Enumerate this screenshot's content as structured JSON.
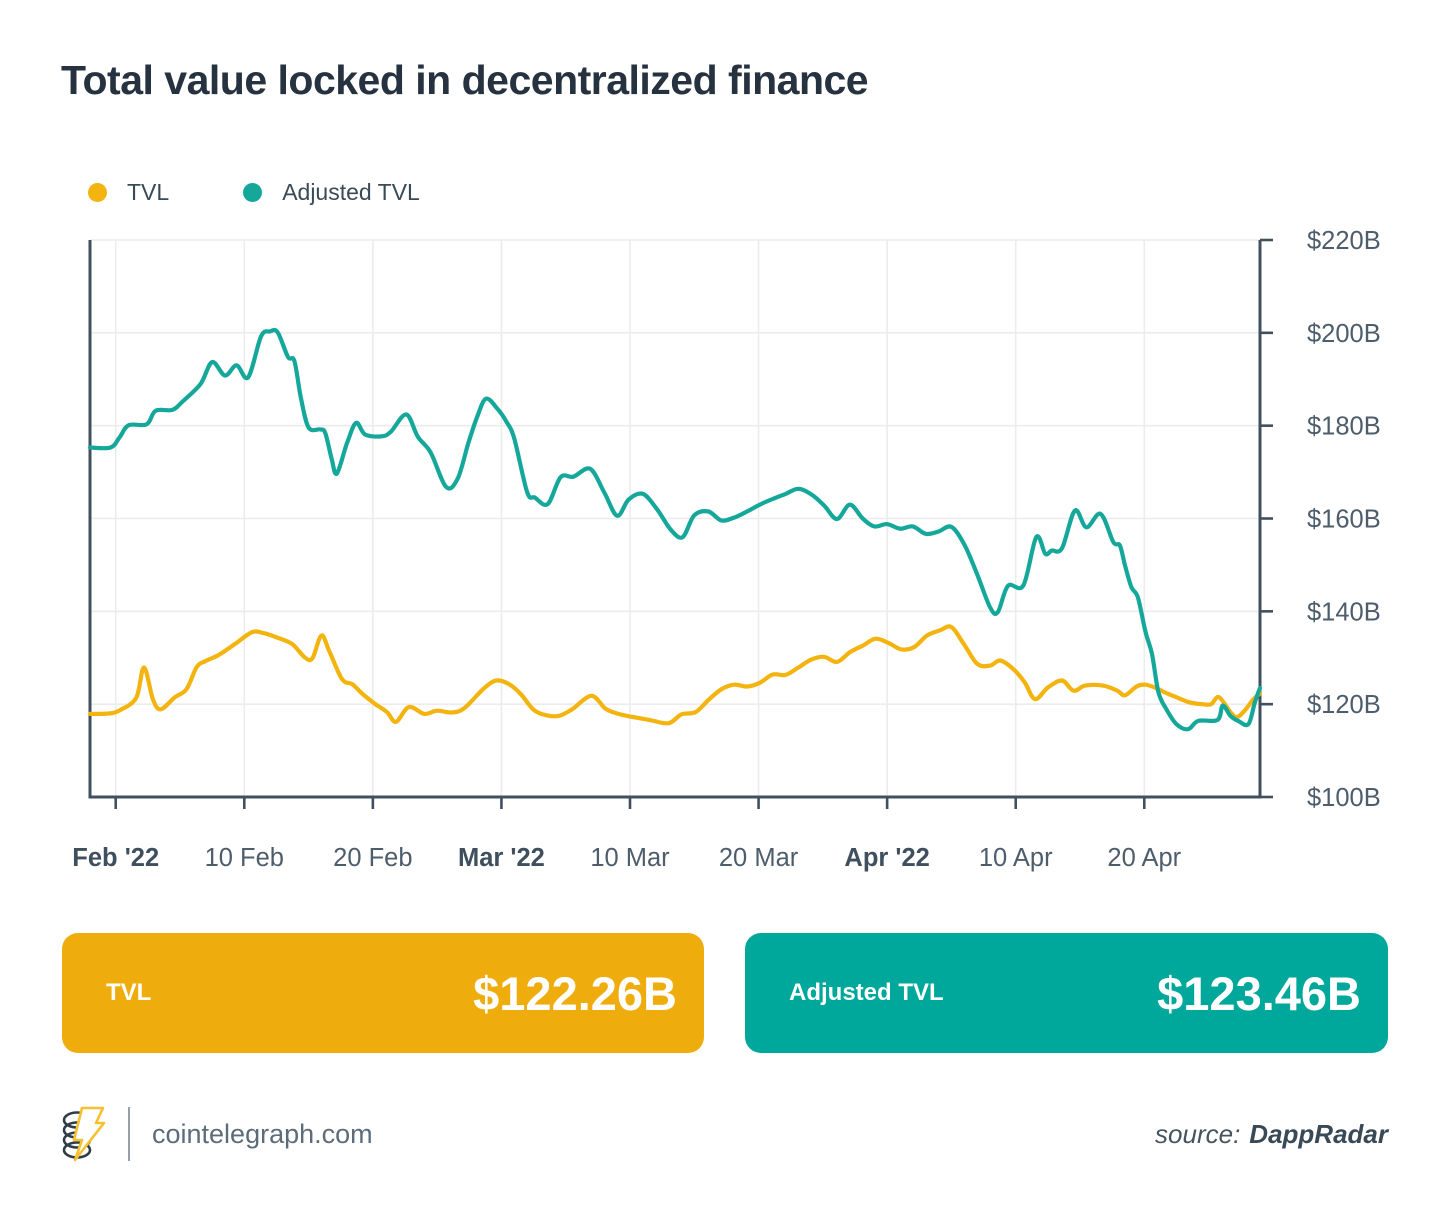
{
  "title": "Total value locked in decentralized finance",
  "legend": [
    {
      "label": "TVL",
      "color": "#F3B40F"
    },
    {
      "label": "Adjusted TVL",
      "color": "#16A79B"
    }
  ],
  "chart_data": {
    "type": "line",
    "title": "Total value locked in decentralized finance",
    "xlabel": "",
    "ylabel": "",
    "grid": true,
    "legend_position": "top-left",
    "x_axis": {
      "day_span": 91,
      "ticks": [
        {
          "day": 2,
          "label": "Feb '22",
          "bold": true
        },
        {
          "day": 12,
          "label": "10 Feb",
          "bold": false
        },
        {
          "day": 22,
          "label": "20 Feb",
          "bold": false
        },
        {
          "day": 32,
          "label": "Mar '22",
          "bold": true
        },
        {
          "day": 42,
          "label": "10 Mar",
          "bold": false
        },
        {
          "day": 52,
          "label": "20 Mar",
          "bold": false
        },
        {
          "day": 62,
          "label": "Apr '22",
          "bold": true
        },
        {
          "day": 72,
          "label": "10 Apr",
          "bold": false
        },
        {
          "day": 82,
          "label": "20 Apr",
          "bold": false
        }
      ]
    },
    "y_axis": {
      "min": 100,
      "max": 220,
      "unit": "$B",
      "ticks": [
        {
          "value": 220,
          "label": "$220B"
        },
        {
          "value": 200,
          "label": "$200B"
        },
        {
          "value": 180,
          "label": "$180B"
        },
        {
          "value": 160,
          "label": "$160B"
        },
        {
          "value": 140,
          "label": "$140B"
        },
        {
          "value": 120,
          "label": "$120B"
        },
        {
          "value": 100,
          "label": "$100B"
        }
      ]
    },
    "series": [
      {
        "name": "TVL",
        "color": "#F3B40F",
        "points": [
          [
            0,
            117.9
          ],
          [
            1.5,
            118.0
          ],
          [
            2.4,
            118.8
          ],
          [
            3.6,
            121.4
          ],
          [
            4.2,
            127.9
          ],
          [
            4.9,
            121.0
          ],
          [
            5.5,
            118.9
          ],
          [
            6.6,
            121.5
          ],
          [
            7.5,
            123.2
          ],
          [
            8.3,
            128.0
          ],
          [
            9,
            129.3
          ],
          [
            10,
            130.6
          ],
          [
            11.3,
            133.0
          ],
          [
            12.6,
            135.5
          ],
          [
            13.5,
            135.3
          ],
          [
            14.5,
            134.4
          ],
          [
            15.7,
            133.0
          ],
          [
            16.7,
            130.1
          ],
          [
            17.3,
            129.9
          ],
          [
            18,
            134.8
          ],
          [
            18.6,
            131.5
          ],
          [
            19.6,
            125.4
          ],
          [
            20.4,
            124.3
          ],
          [
            21.2,
            122.2
          ],
          [
            22.2,
            120.0
          ],
          [
            23.1,
            118.3
          ],
          [
            23.8,
            116.2
          ],
          [
            24.8,
            119.4
          ],
          [
            26,
            117.9
          ],
          [
            27,
            118.6
          ],
          [
            28.1,
            118.2
          ],
          [
            29.1,
            119.1
          ],
          [
            30.6,
            123.3
          ],
          [
            31.6,
            125.1
          ],
          [
            32.6,
            124.3
          ],
          [
            33.5,
            122.2
          ],
          [
            34.5,
            118.8
          ],
          [
            35.5,
            117.6
          ],
          [
            36.5,
            117.5
          ],
          [
            37.5,
            118.9
          ],
          [
            39,
            121.8
          ],
          [
            40.1,
            119.0
          ],
          [
            41.1,
            117.9
          ],
          [
            42.1,
            117.3
          ],
          [
            43.5,
            116.6
          ],
          [
            45,
            115.9
          ],
          [
            46,
            117.8
          ],
          [
            47.1,
            118.3
          ],
          [
            48.1,
            120.9
          ],
          [
            49.1,
            123.2
          ],
          [
            50.1,
            124.2
          ],
          [
            51.1,
            123.8
          ],
          [
            52.1,
            124.6
          ],
          [
            53.1,
            126.4
          ],
          [
            54.1,
            126.3
          ],
          [
            55.1,
            127.9
          ],
          [
            56.1,
            129.6
          ],
          [
            57.1,
            130.2
          ],
          [
            58.1,
            129.1
          ],
          [
            59.1,
            131.2
          ],
          [
            60.1,
            132.6
          ],
          [
            61.1,
            134.1
          ],
          [
            62.1,
            133.2
          ],
          [
            63.1,
            131.8
          ],
          [
            64.1,
            132.3
          ],
          [
            65.1,
            134.8
          ],
          [
            66.1,
            135.9
          ],
          [
            67,
            136.6
          ],
          [
            68,
            132.8
          ],
          [
            69,
            128.7
          ],
          [
            70,
            128.3
          ],
          [
            70.8,
            129.4
          ],
          [
            71.8,
            127.6
          ],
          [
            72.7,
            124.7
          ],
          [
            73.5,
            121.1
          ],
          [
            74.5,
            123.6
          ],
          [
            75.6,
            125.1
          ],
          [
            76.5,
            122.9
          ],
          [
            77.4,
            124.0
          ],
          [
            78.8,
            124.0
          ],
          [
            79.9,
            122.9
          ],
          [
            80.5,
            121.9
          ],
          [
            81.4,
            123.8
          ],
          [
            82.1,
            124.2
          ],
          [
            83,
            123.4
          ],
          [
            83.7,
            122.4
          ],
          [
            84.5,
            121.5
          ],
          [
            85.5,
            120.4
          ],
          [
            86.5,
            120.0
          ],
          [
            87.2,
            120.0
          ],
          [
            87.8,
            121.5
          ],
          [
            88.7,
            118.3
          ],
          [
            89.2,
            117.2
          ],
          [
            89.8,
            118.6
          ],
          [
            90.5,
            121.1
          ],
          [
            91,
            122.3
          ]
        ]
      },
      {
        "name": "Adjusted TVL",
        "color": "#16A79B",
        "points": [
          [
            0,
            175.3
          ],
          [
            1.6,
            175.3
          ],
          [
            2.3,
            177.5
          ],
          [
            3,
            180.1
          ],
          [
            4.4,
            180.3
          ],
          [
            5.1,
            183.2
          ],
          [
            6.4,
            183.4
          ],
          [
            7.2,
            185.2
          ],
          [
            8.6,
            189.0
          ],
          [
            9.5,
            193.7
          ],
          [
            10.5,
            190.8
          ],
          [
            11.4,
            193.0
          ],
          [
            12.3,
            190.4
          ],
          [
            13.3,
            199.2
          ],
          [
            14,
            200.3
          ],
          [
            14.6,
            200.1
          ],
          [
            15.4,
            194.8
          ],
          [
            15.9,
            193.9
          ],
          [
            16.4,
            186.0
          ],
          [
            17,
            179.6
          ],
          [
            17.9,
            179.2
          ],
          [
            18.3,
            178.4
          ],
          [
            18.8,
            172.8
          ],
          [
            19.2,
            169.7
          ],
          [
            20,
            176.3
          ],
          [
            20.7,
            180.6
          ],
          [
            21.4,
            178.1
          ],
          [
            22.7,
            177.7
          ],
          [
            23.4,
            178.7
          ],
          [
            24.6,
            182.4
          ],
          [
            25.5,
            177.6
          ],
          [
            26.5,
            174.2
          ],
          [
            27.7,
            166.8
          ],
          [
            28.6,
            168.6
          ],
          [
            29.4,
            176.0
          ],
          [
            30.1,
            181.8
          ],
          [
            30.8,
            185.8
          ],
          [
            31.7,
            183.6
          ],
          [
            32.4,
            180.8
          ],
          [
            33,
            177.2
          ],
          [
            34,
            165.7
          ],
          [
            34.6,
            164.5
          ],
          [
            35.6,
            163.1
          ],
          [
            36.6,
            168.9
          ],
          [
            37.6,
            169.0
          ],
          [
            38.9,
            170.7
          ],
          [
            40,
            165.6
          ],
          [
            41,
            160.6
          ],
          [
            41.9,
            164.1
          ],
          [
            43,
            165.3
          ],
          [
            44.1,
            162.0
          ],
          [
            45.2,
            157.5
          ],
          [
            46.1,
            156.0
          ],
          [
            47,
            160.7
          ],
          [
            48.1,
            161.5
          ],
          [
            49.1,
            159.6
          ],
          [
            50.1,
            160.2
          ],
          [
            51.1,
            161.5
          ],
          [
            52.1,
            163.0
          ],
          [
            53.1,
            164.2
          ],
          [
            54.1,
            165.3
          ],
          [
            55.1,
            166.4
          ],
          [
            56.1,
            165.2
          ],
          [
            57.1,
            162.8
          ],
          [
            58.1,
            159.9
          ],
          [
            59.1,
            163.0
          ],
          [
            60.1,
            160.0
          ],
          [
            61,
            158.3
          ],
          [
            62,
            158.8
          ],
          [
            63,
            157.8
          ],
          [
            64,
            158.3
          ],
          [
            65,
            156.7
          ],
          [
            66,
            157.2
          ],
          [
            67,
            158.2
          ],
          [
            68,
            154.4
          ],
          [
            69,
            148.0
          ],
          [
            70,
            140.9
          ],
          [
            70.6,
            139.8
          ],
          [
            71.4,
            145.5
          ],
          [
            72.6,
            145.6
          ],
          [
            73.6,
            156.0
          ],
          [
            74.3,
            152.4
          ],
          [
            74.8,
            153.1
          ],
          [
            75.6,
            153.6
          ],
          [
            76.6,
            161.7
          ],
          [
            77.5,
            158.1
          ],
          [
            78.6,
            161.0
          ],
          [
            79.6,
            154.9
          ],
          [
            80.1,
            154.2
          ],
          [
            80.5,
            149.9
          ],
          [
            81,
            145.2
          ],
          [
            81.5,
            143.0
          ],
          [
            82.1,
            135.5
          ],
          [
            82.6,
            130.8
          ],
          [
            83.1,
            122.6
          ],
          [
            83.7,
            119.0
          ],
          [
            84.5,
            115.7
          ],
          [
            85.4,
            114.6
          ],
          [
            86.2,
            116.4
          ],
          [
            87.7,
            116.6
          ],
          [
            88.1,
            119.7
          ],
          [
            88.7,
            117.5
          ],
          [
            89.3,
            116.4
          ],
          [
            90.1,
            115.7
          ],
          [
            90.6,
            120.4
          ],
          [
            91,
            123.5
          ]
        ]
      }
    ]
  },
  "summary_cards": [
    {
      "label": "TVL",
      "value": "$122.26B",
      "color": "#EFAD0D"
    },
    {
      "label": "Adjusted TVL",
      "value": "$123.46B",
      "color": "#00A79B"
    }
  ],
  "footer": {
    "site": "cointelegraph.com",
    "source_prefix": "source:",
    "source_name": "DappRadar"
  },
  "colors": {
    "title": "#26323F",
    "axis": "#41505E",
    "tick_label": "#4E5D6B",
    "tick_label_bold": "#3F4F5D",
    "grid": "#ECECEC",
    "background": "#FFFFFF"
  }
}
